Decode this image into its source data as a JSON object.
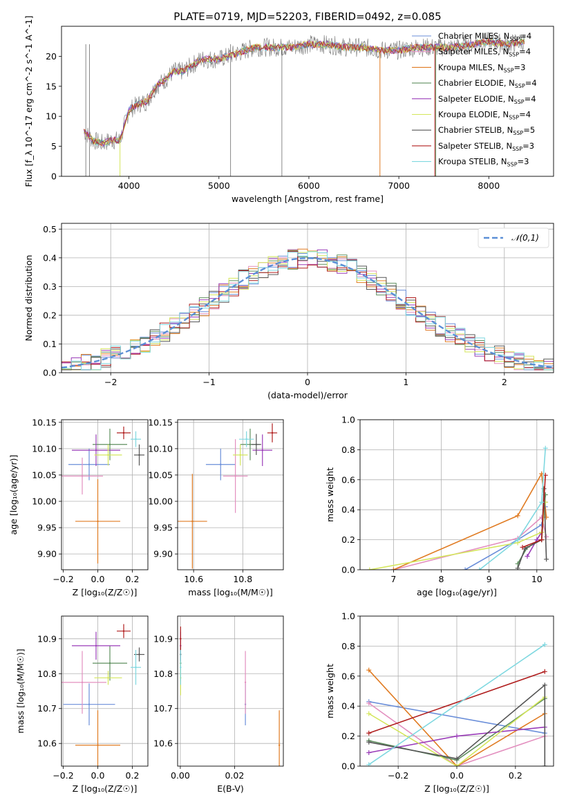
{
  "figure_title": "PLATE=0719, MJD=52203, FIBERID=0492, z=0.085",
  "series": [
    {
      "name": "Chabrier MILES",
      "nssp": "4",
      "color": "#6a8ed9"
    },
    {
      "name": "Salpeter MILES",
      "nssp": "4",
      "color": "#e38fbf"
    },
    {
      "name": "Kroupa MILES",
      "nssp": "3",
      "color": "#e07b22"
    },
    {
      "name": "Chabrier ELODIE",
      "nssp": "4",
      "color": "#5e8f5e"
    },
    {
      "name": "Salpeter ELODIE",
      "nssp": "4",
      "color": "#9a3cb8"
    },
    {
      "name": "Kroupa ELODIE",
      "nssp": "4",
      "color": "#d4e65a"
    },
    {
      "name": "Chabrier STELIB",
      "nssp": "5",
      "color": "#555555"
    },
    {
      "name": "Salpeter STELIB",
      "nssp": "3",
      "color": "#b01e1e"
    },
    {
      "name": "Kroupa STELIB",
      "nssp": "3",
      "color": "#7fd8e0"
    }
  ],
  "chart_data": [
    {
      "id": "spectrum",
      "type": "line",
      "xlabel": "wavelength [Angstrom, rest frame]",
      "ylabel": "Flux [f_λ 10^-17 erg cm^-2 s^-1 A^-1]",
      "xlim": [
        3250,
        8720
      ],
      "ylim": [
        0,
        25
      ],
      "xticks": [
        "4000",
        "5000",
        "6000",
        "7000",
        "8000"
      ],
      "yticks": [
        "0",
        "5",
        "10",
        "15",
        "20"
      ],
      "x": [
        3500,
        3600,
        3700,
        3800,
        3900,
        4000,
        4100,
        4200,
        4300,
        4400,
        4500,
        4600,
        4800,
        5000,
        5200,
        5400,
        5600,
        5800,
        6000,
        6200,
        6400,
        6600,
        6800,
        7000,
        7200,
        7400,
        7600,
        7800,
        8000,
        8200,
        8400
      ],
      "flux": [
        7.5,
        6,
        5.5,
        6,
        6,
        11,
        12,
        12.5,
        15,
        16,
        17.5,
        17.5,
        19.5,
        19.5,
        20.5,
        21.5,
        21.5,
        21.5,
        22,
        22,
        21.5,
        21.5,
        21,
        21,
        21.5,
        21.5,
        21.5,
        22,
        22.5,
        22,
        22.5
      ],
      "legend": "top-right"
    },
    {
      "id": "residual-histogram",
      "type": "line",
      "xlabel": "(data-model)/error",
      "ylabel": "Normed distribution",
      "xlim": [
        -2.5,
        2.5
      ],
      "ylim": [
        0,
        0.52
      ],
      "xticks": [
        "−2",
        "−1",
        "0",
        "1",
        "2"
      ],
      "yticks": [
        "0.0",
        "0.1",
        "0.2",
        "0.3",
        "0.4",
        "0.5"
      ],
      "gaussian_label": "𝒩(0,1)",
      "gaussian_color": "#5b8fd6",
      "bin_width": 0.1,
      "grid": true
    },
    {
      "id": "age-vs-Z",
      "type": "scatter",
      "xlabel": "Z [log₁₀(Z/Z☉)]",
      "ylabel": "age  [log₁₀(age/yr)]",
      "xlim": [
        -0.21,
        0.29
      ],
      "ylim": [
        9.87,
        10.155
      ],
      "xticks": [
        "−0.2",
        "0.0",
        "0.2"
      ],
      "yticks": [
        "9.90",
        "9.95",
        "10.00",
        "10.05",
        "10.10",
        "10.15"
      ],
      "points": [
        {
          "x": -0.05,
          "y": 10.07,
          "ex": 0.12,
          "ey": 0.03
        },
        {
          "x": -0.09,
          "y": 10.048,
          "ex": 0.12,
          "ey": 0.035
        },
        {
          "x": 0.0,
          "y": 9.962,
          "ex": 0.13,
          "ey": 0.08
        },
        {
          "x": 0.07,
          "y": 10.108,
          "ex": 0.1,
          "ey": 0.03
        },
        {
          "x": -0.01,
          "y": 10.097,
          "ex": 0.14,
          "ey": 0.03
        },
        {
          "x": 0.06,
          "y": 10.088,
          "ex": 0.08,
          "ey": 0.02
        },
        {
          "x": 0.24,
          "y": 10.088,
          "ex": 0.03,
          "ey": 0.02
        },
        {
          "x": 0.15,
          "y": 10.13,
          "ex": 0.04,
          "ey": 0.012
        },
        {
          "x": 0.22,
          "y": 10.118,
          "ex": 0.03,
          "ey": 0.015
        }
      ]
    },
    {
      "id": "age-vs-mass",
      "type": "scatter",
      "xlabel": "mass [log₁₀(M/M☉)]",
      "ylabel": "",
      "xlim": [
        10.535,
        10.965
      ],
      "ylim": [
        9.87,
        10.155
      ],
      "xticks": [
        "10.6",
        "10.8"
      ],
      "yticks": [
        "9.90",
        "9.95",
        "10.00",
        "10.05",
        "10.10",
        "10.15"
      ],
      "points": [
        {
          "x": 10.71,
          "y": 10.07,
          "ex": 0.06,
          "ey": 0.03
        },
        {
          "x": 10.77,
          "y": 10.048,
          "ex": 0.05,
          "ey": 0.07
        },
        {
          "x": 10.595,
          "y": 9.962,
          "ex": 0.06,
          "ey": 0.09
        },
        {
          "x": 10.83,
          "y": 10.108,
          "ex": 0.04,
          "ey": 0.03
        },
        {
          "x": 10.88,
          "y": 10.097,
          "ex": 0.04,
          "ey": 0.03
        },
        {
          "x": 10.79,
          "y": 10.088,
          "ex": 0.03,
          "ey": 0.02
        },
        {
          "x": 10.855,
          "y": 10.108,
          "ex": 0.02,
          "ey": 0.02
        },
        {
          "x": 10.92,
          "y": 10.13,
          "ex": 0.02,
          "ey": 0.018
        },
        {
          "x": 10.815,
          "y": 10.118,
          "ex": 0.03,
          "ey": 0.015
        }
      ]
    },
    {
      "id": "mass-weight-vs-age",
      "type": "line",
      "xlabel": "age  [log₁₀(age/yr)]",
      "ylabel": "mass weight",
      "xlim": [
        6.3,
        10.35
      ],
      "ylim": [
        0,
        1.0
      ],
      "xticks": [
        "7",
        "8",
        "9",
        "10"
      ],
      "yticks": [
        "0.0",
        "0.2",
        "0.4",
        "0.6",
        "0.8",
        "1.0"
      ],
      "series_points": [
        {
          "x": [
            8.5,
            9.6,
            10.1,
            10.18
          ],
          "y": [
            0.0,
            0.2,
            0.3,
            0.42
          ]
        },
        {
          "x": [
            7.0,
            9.6,
            10.1,
            10.2
          ],
          "y": [
            0.0,
            0.21,
            0.35,
            0.22
          ]
        },
        {
          "x": [
            7.0,
            9.6,
            10.1,
            10.2
          ],
          "y": [
            0.0,
            0.36,
            0.64,
            0.35
          ]
        },
        {
          "x": [
            9.6,
            9.8,
            10.1,
            10.18
          ],
          "y": [
            0.04,
            0.15,
            0.2,
            0.5
          ]
        },
        {
          "x": [
            9.8,
            10.0,
            10.1,
            10.18
          ],
          "y": [
            0.09,
            0.2,
            0.25,
            0.45
          ]
        },
        {
          "x": [
            6.5,
            9.6,
            10.1,
            10.18
          ],
          "y": [
            0.0,
            0.18,
            0.25,
            0.45
          ]
        },
        {
          "x": [
            9.6,
            9.75,
            10.1,
            10.15,
            10.2
          ],
          "y": [
            0.01,
            0.14,
            0.2,
            0.54,
            0.07
          ]
        },
        {
          "x": [
            9.7,
            10.1,
            10.18
          ],
          "y": [
            0.15,
            0.2,
            0.63
          ]
        },
        {
          "x": [
            8.8,
            9.6,
            10.1,
            10.18
          ],
          "y": [
            0.0,
            0.2,
            0.45,
            0.81
          ]
        }
      ]
    },
    {
      "id": "mass-vs-Z",
      "type": "scatter",
      "xlabel": "Z [log₁₀(Z/Z☉)]",
      "ylabel": "mass [log₁₀(M/M☉)]",
      "xlim": [
        -0.21,
        0.29
      ],
      "ylim": [
        10.535,
        10.965
      ],
      "xticks": [
        "−0.2",
        "0.0",
        "0.2"
      ],
      "yticks": [
        "10.6",
        "10.7",
        "10.8",
        "10.9"
      ],
      "points": [
        {
          "x": -0.05,
          "y": 10.712,
          "ex": 0.15,
          "ey": 0.06
        },
        {
          "x": -0.09,
          "y": 10.775,
          "ex": 0.14,
          "ey": 0.09
        },
        {
          "x": 0.0,
          "y": 10.595,
          "ex": 0.13,
          "ey": 0.1
        },
        {
          "x": 0.07,
          "y": 10.83,
          "ex": 0.1,
          "ey": 0.05
        },
        {
          "x": -0.01,
          "y": 10.88,
          "ex": 0.14,
          "ey": 0.04
        },
        {
          "x": 0.06,
          "y": 10.788,
          "ex": 0.08,
          "ey": 0.02
        },
        {
          "x": 0.24,
          "y": 10.855,
          "ex": 0.03,
          "ey": 0.02
        },
        {
          "x": 0.15,
          "y": 10.922,
          "ex": 0.04,
          "ey": 0.02
        },
        {
          "x": 0.22,
          "y": 10.818,
          "ex": 0.03,
          "ey": 0.05
        }
      ]
    },
    {
      "id": "mass-vs-EBV",
      "type": "scatter",
      "xlabel": "E(B-V)",
      "ylabel": "",
      "xlim": [
        -0.001,
        0.038
      ],
      "ylim": [
        10.535,
        10.965
      ],
      "xticks": [
        "0.00",
        "0.02"
      ],
      "yticks": [
        "10.6",
        "10.7",
        "10.8",
        "10.9"
      ],
      "points": [
        {
          "x": 0.024,
          "y": 10.712,
          "ex": 0,
          "ey": 0.06
        },
        {
          "x": 0.024,
          "y": 10.775,
          "ex": 0,
          "ey": 0.09
        },
        {
          "x": 0.0365,
          "y": 10.595,
          "ex": 0,
          "ey": 0.1
        },
        {
          "x": 0.0001,
          "y": 10.83,
          "ex": 0,
          "ey": 0.05
        },
        {
          "x": 0.0001,
          "y": 10.88,
          "ex": 0,
          "ey": 0.04
        },
        {
          "x": 0.0001,
          "y": 10.788,
          "ex": 0,
          "ey": 0.05
        },
        {
          "x": 0.0001,
          "y": 10.855,
          "ex": 0,
          "ey": 0.02
        },
        {
          "x": 0.0001,
          "y": 10.9,
          "ex": 0,
          "ey": 0.035
        },
        {
          "x": 0.0001,
          "y": 10.818,
          "ex": 0,
          "ey": 0.05
        }
      ]
    },
    {
      "id": "mass-weight-vs-Z",
      "type": "line",
      "xlabel": "Z [log₁₀(Z/Z☉)]",
      "ylabel": "mass weight",
      "xlim": [
        -0.33,
        0.33
      ],
      "ylim": [
        0,
        1.0
      ],
      "xticks": [
        "−0.2",
        "0.0",
        "0.2"
      ],
      "yticks": [
        "0.0",
        "0.2",
        "0.4",
        "0.6",
        "0.8",
        "1.0"
      ],
      "series_points": [
        {
          "x": [
            -0.3,
            0.3
          ],
          "y": [
            0.43,
            0.22
          ]
        },
        {
          "x": [
            -0.3,
            0.0,
            0.3
          ],
          "y": [
            0.42,
            0.0,
            0.2
          ]
        },
        {
          "x": [
            -0.3,
            0.0,
            0.3
          ],
          "y": [
            0.64,
            0.0,
            0.35
          ]
        },
        {
          "x": [
            -0.3,
            0.0,
            0.3
          ],
          "y": [
            0.17,
            0.04,
            0.45
          ]
        },
        {
          "x": [
            -0.3,
            0.0,
            0.3
          ],
          "y": [
            0.09,
            0.2,
            0.26
          ]
        },
        {
          "x": [
            -0.3,
            0.0,
            0.3
          ],
          "y": [
            0.35,
            0.0,
            0.46
          ]
        },
        {
          "x": [
            -0.3,
            0.0,
            0.3,
            0.3
          ],
          "y": [
            0.16,
            0.05,
            0.54,
            0.0
          ]
        },
        {
          "x": [
            -0.3,
            0.3
          ],
          "y": [
            0.22,
            0.63
          ]
        },
        {
          "x": [
            -0.3,
            0.3
          ],
          "y": [
            0.01,
            0.81
          ]
        }
      ]
    }
  ]
}
